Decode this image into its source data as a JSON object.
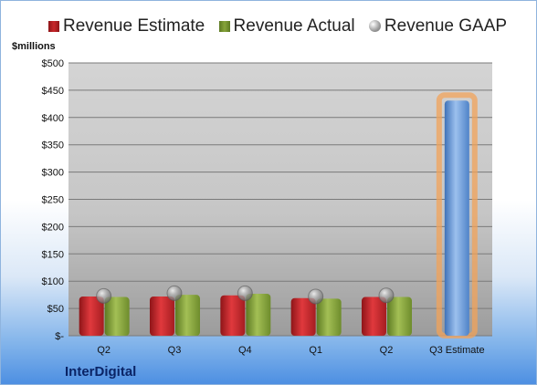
{
  "legend": {
    "estimate": "Revenue Estimate",
    "actual": "Revenue Actual",
    "gaap": "Revenue GAAP"
  },
  "unit_label": "$millions",
  "company": "InterDigital",
  "colors": {
    "estimate": "#c8262a",
    "actual": "#86a33a",
    "gaap": "#9a9a9a",
    "forecast": "#6f9fdc",
    "forecast_glow": "#f2a35a"
  },
  "chart_data": {
    "type": "bar",
    "categories": [
      "Q2",
      "Q3",
      "Q4",
      "Q1",
      "Q2",
      "Q3 Estimate"
    ],
    "ylim": [
      0,
      500
    ],
    "yticks": [
      0,
      50,
      100,
      150,
      200,
      250,
      300,
      350,
      400,
      450,
      500
    ],
    "ytick_labels": [
      "$-",
      "$50",
      "$100",
      "$150",
      "$200",
      "$250",
      "$300",
      "$350",
      "$400",
      "$450",
      "$500"
    ],
    "series": [
      {
        "name": "Revenue Estimate",
        "values": [
          72,
          72,
          74,
          69,
          71,
          431
        ]
      },
      {
        "name": "Revenue Actual",
        "values": [
          71,
          75,
          77,
          68,
          71,
          null
        ]
      },
      {
        "name": "Revenue GAAP",
        "values": [
          73,
          78,
          78,
          72,
          74,
          null
        ]
      }
    ],
    "grid": true,
    "legend_position": "top"
  }
}
